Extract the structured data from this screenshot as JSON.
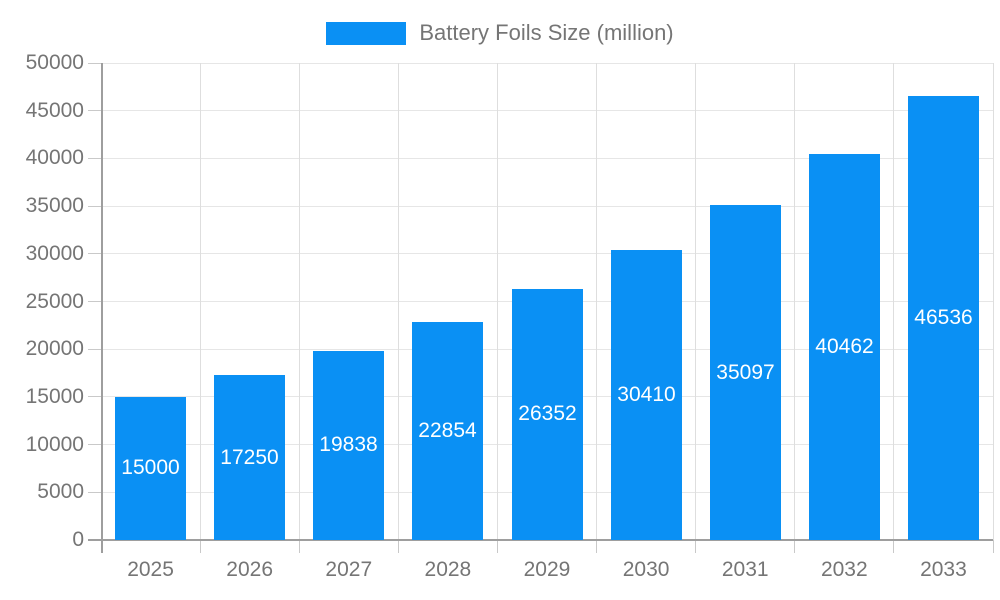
{
  "legend": {
    "label": "Battery Foils Size (million)"
  },
  "chart_data": {
    "type": "bar",
    "title": "Battery Foils Size (million)",
    "categories": [
      "2025",
      "2026",
      "2027",
      "2028",
      "2029",
      "2030",
      "2031",
      "2032",
      "2033"
    ],
    "series": [
      {
        "name": "Battery Foils Size (million)",
        "values": [
          15000,
          17250,
          19838,
          22854,
          26352,
          30410,
          35097,
          40462,
          46536
        ]
      }
    ],
    "data_labels": [
      15000,
      17250,
      19838,
      22854,
      26352,
      30410,
      35097,
      40462,
      46536
    ],
    "xlabel": "",
    "ylabel": "",
    "ylim": [
      0,
      50000
    ],
    "ytick_step": 5000,
    "ytick_labels": [
      "0",
      "5000",
      "10000",
      "15000",
      "20000",
      "25000",
      "30000",
      "35000",
      "40000",
      "45000",
      "50000"
    ],
    "grid": true,
    "legend_position": "top-center",
    "colors": {
      "bar": "#0a90f4",
      "bar_label": "#ffffff",
      "axis_line": "#9e9e9e",
      "tick": "#c9c9c9",
      "grid_horizontal": "#e6e6e6",
      "grid_vertical": "#dedede",
      "text": "#757575",
      "background": "#ffffff"
    }
  }
}
